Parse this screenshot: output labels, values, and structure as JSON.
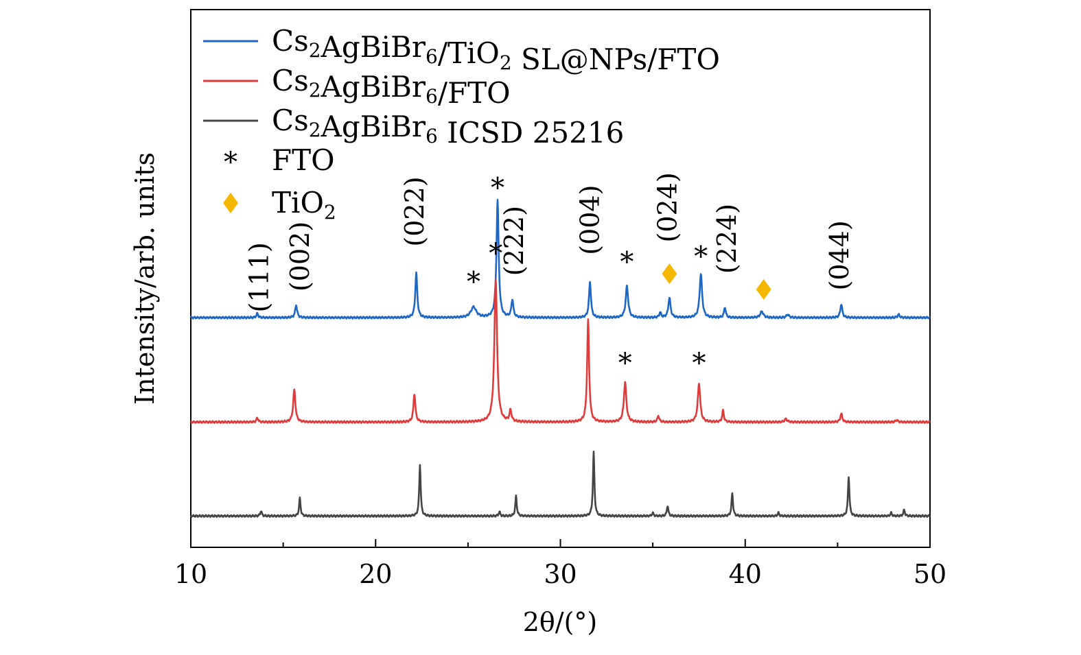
{
  "chart_data": {
    "type": "line",
    "title": "",
    "xlabel": "2θ/(°)",
    "ylabel": "Intensity/arb. units",
    "xlim": [
      10,
      50
    ],
    "xticks": [
      10,
      20,
      30,
      40,
      50
    ],
    "xtick_labels": [
      "10",
      "20",
      "30",
      "40",
      "50"
    ],
    "y_ticks_shown": false,
    "legend_position": "top-left",
    "series": [
      {
        "name": "Cs₂AgBiBr₆/TiO₂ SL@NPs/FTO",
        "legend_label": {
          "base1": "Cs",
          "sub1": "2",
          "base2": "AgBiBr",
          "sub2": "6",
          "base3": "/TiO",
          "sub3": "2",
          "base4": " SL@NPs/FTO"
        },
        "color": "#1f67c4",
        "offset": 1.0,
        "peaks": [
          {
            "x": 13.6,
            "h": 0.04,
            "w": 0.07
          },
          {
            "x": 15.7,
            "h": 0.12,
            "w": 0.08
          },
          {
            "x": 22.2,
            "h": 0.43,
            "w": 0.08
          },
          {
            "x": 25.3,
            "h": 0.1,
            "w": 0.22
          },
          {
            "x": 26.6,
            "h": 1.12,
            "w": 0.09
          },
          {
            "x": 27.4,
            "h": 0.17,
            "w": 0.08
          },
          {
            "x": 31.6,
            "h": 0.34,
            "w": 0.08
          },
          {
            "x": 33.6,
            "h": 0.3,
            "w": 0.1
          },
          {
            "x": 35.4,
            "h": 0.05,
            "w": 0.07
          },
          {
            "x": 35.9,
            "h": 0.19,
            "w": 0.09
          },
          {
            "x": 37.6,
            "h": 0.42,
            "w": 0.1
          },
          {
            "x": 38.9,
            "h": 0.1,
            "w": 0.07
          },
          {
            "x": 40.9,
            "h": 0.06,
            "w": 0.12
          },
          {
            "x": 42.3,
            "h": 0.03,
            "w": 0.1
          },
          {
            "x": 45.2,
            "h": 0.13,
            "w": 0.08
          },
          {
            "x": 48.3,
            "h": 0.03,
            "w": 0.08
          }
        ]
      },
      {
        "name": "Cs₂AgBiBr₆/FTO",
        "legend_label": {
          "base1": "Cs",
          "sub1": "2",
          "base2": "AgBiBr",
          "sub2": "6",
          "base3": "/FTO"
        },
        "color": "#e03b3b",
        "offset": 0.0,
        "peaks": [
          {
            "x": 13.6,
            "h": 0.04,
            "w": 0.07
          },
          {
            "x": 15.6,
            "h": 0.31,
            "w": 0.09
          },
          {
            "x": 22.1,
            "h": 0.27,
            "w": 0.08
          },
          {
            "x": 26.5,
            "h": 1.37,
            "w": 0.11
          },
          {
            "x": 27.3,
            "h": 0.11,
            "w": 0.08
          },
          {
            "x": 31.5,
            "h": 0.98,
            "w": 0.08
          },
          {
            "x": 33.5,
            "h": 0.38,
            "w": 0.1
          },
          {
            "x": 35.3,
            "h": 0.06,
            "w": 0.07
          },
          {
            "x": 37.5,
            "h": 0.37,
            "w": 0.1
          },
          {
            "x": 38.8,
            "h": 0.11,
            "w": 0.07
          },
          {
            "x": 42.2,
            "h": 0.03,
            "w": 0.1
          },
          {
            "x": 45.2,
            "h": 0.08,
            "w": 0.08
          },
          {
            "x": 48.2,
            "h": 0.02,
            "w": 0.08
          }
        ]
      },
      {
        "name": "Cs₂AgBiBr₆ ICSD 25216",
        "legend_label": {
          "base1": "Cs",
          "sub1": "2",
          "base2": "AgBiBr",
          "sub2": "6",
          "base3": " ICSD 25216"
        },
        "color": "#444444",
        "offset": -0.9,
        "peaks": [
          {
            "x": 13.8,
            "h": 0.05,
            "w": 0.06
          },
          {
            "x": 15.9,
            "h": 0.17,
            "w": 0.06
          },
          {
            "x": 22.4,
            "h": 0.49,
            "w": 0.06
          },
          {
            "x": 26.7,
            "h": 0.04,
            "w": 0.06
          },
          {
            "x": 27.6,
            "h": 0.19,
            "w": 0.06
          },
          {
            "x": 31.8,
            "h": 0.61,
            "w": 0.06
          },
          {
            "x": 35.0,
            "h": 0.03,
            "w": 0.06
          },
          {
            "x": 35.8,
            "h": 0.1,
            "w": 0.06
          },
          {
            "x": 39.3,
            "h": 0.22,
            "w": 0.06
          },
          {
            "x": 41.8,
            "h": 0.03,
            "w": 0.06
          },
          {
            "x": 45.6,
            "h": 0.38,
            "w": 0.06
          },
          {
            "x": 47.9,
            "h": 0.03,
            "w": 0.06
          },
          {
            "x": 48.6,
            "h": 0.06,
            "w": 0.06
          }
        ]
      }
    ],
    "marker_legend": [
      {
        "name": "FTO",
        "symbol": "*",
        "color": "#e070e6"
      },
      {
        "name": "TiO₂",
        "legend_label": {
          "base1": "TiO",
          "sub1": "2"
        },
        "symbol": "diamond",
        "color": "#f5b800"
      }
    ],
    "markers": [
      {
        "series": 0,
        "x": 25.3,
        "y": 1.36,
        "symbol": "*"
      },
      {
        "series": 0,
        "x": 26.6,
        "y": 2.26,
        "symbol": "*"
      },
      {
        "series": 0,
        "x": 33.6,
        "y": 1.55,
        "symbol": "*"
      },
      {
        "series": 0,
        "x": 37.6,
        "y": 1.6,
        "symbol": "*"
      },
      {
        "series": 0,
        "x": 35.9,
        "y": 1.42,
        "symbol": "diamond"
      },
      {
        "series": 0,
        "x": 41.0,
        "y": 1.27,
        "symbol": "diamond"
      },
      {
        "series": 1,
        "x": 26.5,
        "y": 1.63,
        "symbol": "*"
      },
      {
        "series": 1,
        "x": 33.5,
        "y": 0.58,
        "symbol": "*"
      },
      {
        "series": 1,
        "x": 37.5,
        "y": 0.58,
        "symbol": "*"
      }
    ],
    "annotations": [
      {
        "text": "(111)",
        "x": 13.7,
        "y": 1.05
      },
      {
        "text": "(002)",
        "x": 15.9,
        "y": 1.25
      },
      {
        "text": "(022)",
        "x": 22.1,
        "y": 1.68
      },
      {
        "text": "(222)",
        "x": 27.5,
        "y": 1.4
      },
      {
        "text": "(004)",
        "x": 31.6,
        "y": 1.6
      },
      {
        "text": "(024)",
        "x": 35.8,
        "y": 1.72
      },
      {
        "text": "(224)",
        "x": 39.0,
        "y": 1.42
      },
      {
        "text": "(044)",
        "x": 45.1,
        "y": 1.26
      }
    ],
    "ylim": [
      -1.2,
      3.95
    ]
  }
}
